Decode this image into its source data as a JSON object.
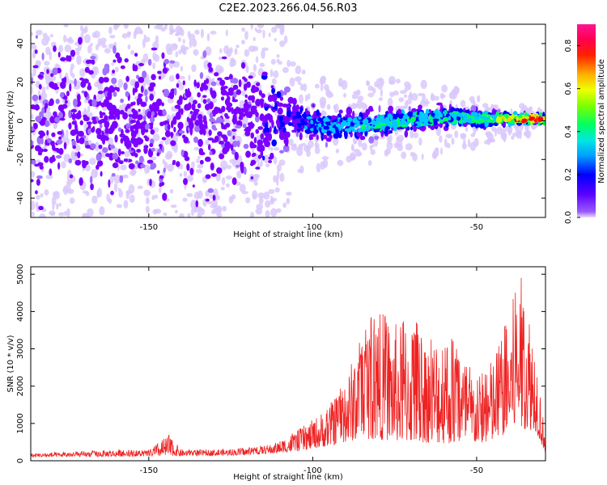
{
  "figure_title": "C2E2.2023.266.04.56.R03",
  "chart_data": [
    {
      "type": "heatmap",
      "xlabel": "Height of straight line (km)",
      "ylabel": "Frequency (Hz)",
      "xlim": [
        -186,
        -29
      ],
      "ylim": [
        -50,
        50
      ],
      "x_ticks": [
        -150,
        -100,
        -50
      ],
      "y_ticks": [
        -40,
        -20,
        0,
        20,
        40
      ],
      "colorbar": {
        "label": "Normalized spectral amplitude",
        "range": [
          0,
          0.9
        ],
        "ticks": [
          0.0,
          0.2,
          0.4,
          0.6,
          0.8
        ],
        "colormap": [
          "#e0d4f8",
          "#7b00ff",
          "#0000ff",
          "#00c8ff",
          "#00ff60",
          "#c8ff00",
          "#ffcc00",
          "#ff0000",
          "#ff1a8c"
        ]
      },
      "description_points": [
        {
          "x": -150,
          "spread_hz": 50,
          "peak_amp": 0.12
        },
        {
          "x": -120,
          "spread_hz": 40,
          "peak_amp": 0.12
        },
        {
          "x": -105,
          "spread_hz": 15,
          "peak_amp": 0.25
        },
        {
          "x": -95,
          "spread_hz": 10,
          "center_hz": -3,
          "peak_amp": 0.35
        },
        {
          "x": -80,
          "spread_hz": 10,
          "center_hz": -1,
          "peak_amp": 0.4
        },
        {
          "x": -60,
          "spread_hz": 8,
          "center_hz": 2,
          "peak_amp": 0.4
        },
        {
          "x": -45,
          "spread_hz": 5,
          "center_hz": 1,
          "peak_amp": 0.55
        },
        {
          "x": -33,
          "spread_hz": 3,
          "center_hz": 1,
          "peak_amp": 0.85
        }
      ]
    },
    {
      "type": "line",
      "xlabel": "Height of straight line (km)",
      "ylabel": "SNR (10 * v/v)",
      "xlim": [
        -186,
        -29
      ],
      "ylim": [
        0,
        5200
      ],
      "x_ticks": [
        -150,
        -100,
        -50
      ],
      "y_ticks": [
        0,
        1000,
        2000,
        3000,
        4000,
        5000
      ],
      "color": "#ee2222",
      "envelope": [
        {
          "x": -186,
          "y": 200
        },
        {
          "x": -170,
          "y": 250
        },
        {
          "x": -160,
          "y": 300
        },
        {
          "x": -150,
          "y": 280
        },
        {
          "x": -144,
          "y": 700
        },
        {
          "x": -140,
          "y": 300
        },
        {
          "x": -130,
          "y": 300
        },
        {
          "x": -120,
          "y": 350
        },
        {
          "x": -112,
          "y": 450
        },
        {
          "x": -105,
          "y": 800
        },
        {
          "x": -100,
          "y": 1100
        },
        {
          "x": -95,
          "y": 1500
        },
        {
          "x": -90,
          "y": 2200
        },
        {
          "x": -85,
          "y": 3500
        },
        {
          "x": -82,
          "y": 4050
        },
        {
          "x": -78,
          "y": 4000
        },
        {
          "x": -74,
          "y": 3600
        },
        {
          "x": -70,
          "y": 4050
        },
        {
          "x": -65,
          "y": 3200
        },
        {
          "x": -60,
          "y": 3700
        },
        {
          "x": -55,
          "y": 3000
        },
        {
          "x": -50,
          "y": 2200
        },
        {
          "x": -45,
          "y": 2800
        },
        {
          "x": -40,
          "y": 4000
        },
        {
          "x": -37,
          "y": 5100
        },
        {
          "x": -35,
          "y": 4600
        },
        {
          "x": -33,
          "y": 3800
        },
        {
          "x": -31,
          "y": 2500
        },
        {
          "x": -29,
          "y": 400
        }
      ],
      "baseline": [
        {
          "x": -186,
          "y": 100
        },
        {
          "x": -150,
          "y": 120
        },
        {
          "x": -120,
          "y": 150
        },
        {
          "x": -105,
          "y": 250
        },
        {
          "x": -95,
          "y": 400
        },
        {
          "x": -85,
          "y": 600
        },
        {
          "x": -70,
          "y": 500
        },
        {
          "x": -55,
          "y": 450
        },
        {
          "x": -45,
          "y": 500
        },
        {
          "x": -38,
          "y": 900
        },
        {
          "x": -32,
          "y": 800
        },
        {
          "x": -29,
          "y": 200
        }
      ]
    }
  ]
}
